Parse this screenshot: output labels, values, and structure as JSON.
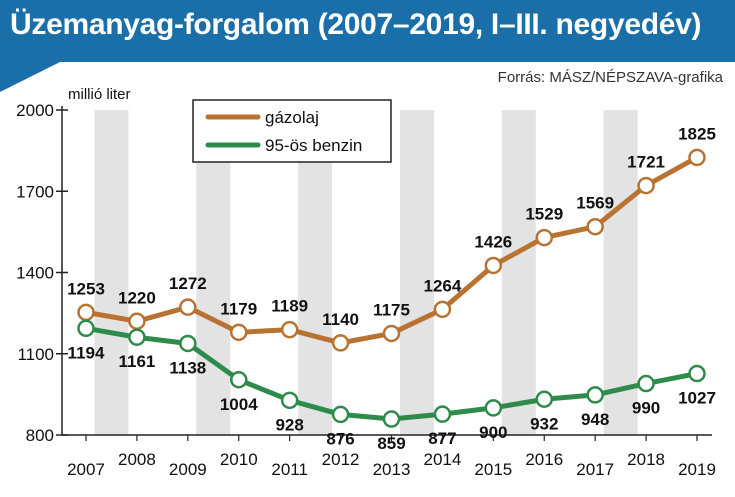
{
  "header": {
    "title": "Üzemanyag-forgalom (2007–2019, I–III. negyedév)",
    "source": "Forrás: MÁSZ/NÉPSZAVA-grafika"
  },
  "colors": {
    "title_bg": "#1a6fa8",
    "diesel": "#b87333",
    "petrol": "#2e8b4a",
    "band": "#e3e3e3"
  },
  "chart_data": {
    "type": "line",
    "title": "Üzemanyag-forgalom (2007–2019, I–III. negyedév)",
    "ylabel": "millió liter",
    "xlabel": "",
    "categories": [
      "2007",
      "2008",
      "2009",
      "2010",
      "2011",
      "2012",
      "2013",
      "2014",
      "2015",
      "2016",
      "2017",
      "2018",
      "2019"
    ],
    "ylim": [
      800,
      2000
    ],
    "yticks": [
      800,
      1100,
      1400,
      1700,
      2000
    ],
    "legend_position": "top-left",
    "grid": false,
    "series": [
      {
        "name": "gázolaj",
        "color": "#b87333",
        "values": [
          1253,
          1220,
          1272,
          1179,
          1189,
          1140,
          1175,
          1264,
          1426,
          1529,
          1569,
          1721,
          1825
        ]
      },
      {
        "name": "95-ös benzin",
        "color": "#2e8b4a",
        "values": [
          1194,
          1161,
          1138,
          1004,
          928,
          876,
          859,
          877,
          900,
          932,
          948,
          990,
          1027
        ]
      }
    ]
  }
}
